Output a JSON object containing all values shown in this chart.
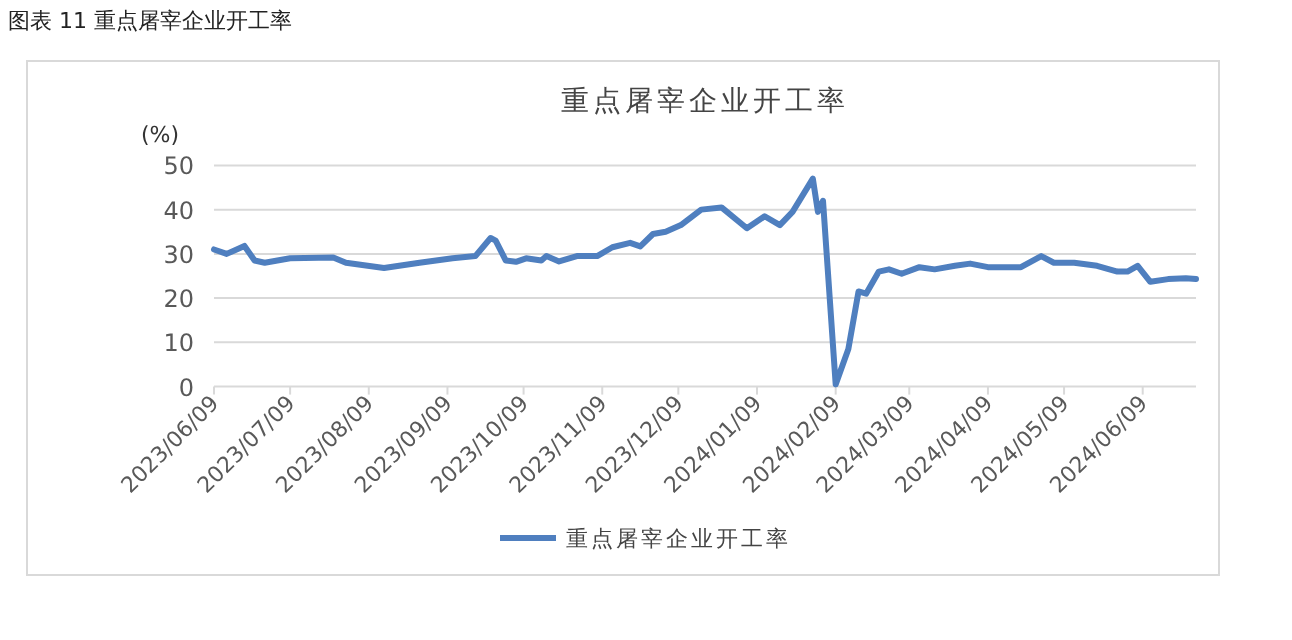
{
  "chart_data": {
    "type": "line",
    "title": "重点屠宰企业开工率",
    "ylabel": "(%)",
    "annotations": [
      "图表 11  重点屠宰企业开工率"
    ],
    "x": [
      "2023-06-09",
      "2023-06-14",
      "2023-06-21",
      "2023-06-25",
      "2023-06-29",
      "2023-07-09",
      "2023-07-26",
      "2023-07-31",
      "2023-08-15",
      "2023-08-29",
      "2023-09-11",
      "2023-09-20",
      "2023-09-26",
      "2023-09-28",
      "2023-10-02",
      "2023-10-06",
      "2023-10-10",
      "2023-10-16",
      "2023-10-18",
      "2023-10-23",
      "2023-10-30",
      "2023-11-07",
      "2023-11-13",
      "2023-11-20",
      "2023-11-24",
      "2023-11-29",
      "2023-12-04",
      "2023-12-10",
      "2023-12-18",
      "2023-12-26",
      "2024-01-05",
      "2024-01-12",
      "2024-01-18",
      "2024-01-23",
      "2024-01-31",
      "2024-02-02",
      "2024-02-04",
      "2024-02-09",
      "2024-02-14",
      "2024-02-18",
      "2024-02-21",
      "2024-02-26",
      "2024-03-01",
      "2024-03-06",
      "2024-03-13",
      "2024-03-19",
      "2024-03-27",
      "2024-04-02",
      "2024-04-09",
      "2024-04-22",
      "2024-04-30",
      "2024-05-05",
      "2024-05-13",
      "2024-05-22",
      "2024-05-30",
      "2024-06-03",
      "2024-06-07",
      "2024-06-12",
      "2024-06-19",
      "2024-06-26",
      "2024-06-30"
    ],
    "series": [
      {
        "name": "重点屠宰企业开工率",
        "color": "#4f7fbf",
        "values": [
          31,
          30,
          31.8,
          28.5,
          28,
          29,
          29.2,
          28,
          26.8,
          28,
          29,
          29.5,
          33.6,
          33,
          28.5,
          28.2,
          29,
          28.5,
          29.5,
          28.3,
          29.5,
          29.5,
          31.5,
          32.5,
          31.7,
          34.5,
          35,
          36.5,
          40,
          40.5,
          35.8,
          38.5,
          36.5,
          39.5,
          47,
          39.5,
          42,
          0.5,
          8.5,
          21.5,
          21,
          26,
          26.5,
          25.5,
          27,
          26.5,
          27.3,
          27.8,
          27,
          27,
          29.5,
          28,
          28,
          27.3,
          26,
          26,
          27.3,
          23.7,
          24.3,
          24.5,
          24.3
        ]
      }
    ],
    "xlim": [
      "2023-06-09",
      "2024-06-30"
    ],
    "xticks": [
      {
        "value": "2023-06-09",
        "label": "2023/06/09"
      },
      {
        "value": "2023-07-09",
        "label": "2023/07/09"
      },
      {
        "value": "2023-08-09",
        "label": "2023/08/09"
      },
      {
        "value": "2023-09-09",
        "label": "2023/09/09"
      },
      {
        "value": "2023-10-09",
        "label": "2023/10/09"
      },
      {
        "value": "2023-11-09",
        "label": "2023/11/09"
      },
      {
        "value": "2023-12-09",
        "label": "2023/12/09"
      },
      {
        "value": "2024-01-09",
        "label": "2024/01/09"
      },
      {
        "value": "2024-02-09",
        "label": "2024/02/09"
      },
      {
        "value": "2024-03-09",
        "label": "2024/03/09"
      },
      {
        "value": "2024-04-09",
        "label": "2024/04/09"
      },
      {
        "value": "2024-05-09",
        "label": "2024/05/09"
      },
      {
        "value": "2024-06-09",
        "label": "2024/06/09"
      }
    ],
    "ylim": [
      0,
      50
    ],
    "yticks": [
      0,
      10,
      20,
      30,
      40,
      50
    ],
    "grid": "y",
    "legend": "bottom",
    "marker": "none",
    "line_style": "solid"
  }
}
